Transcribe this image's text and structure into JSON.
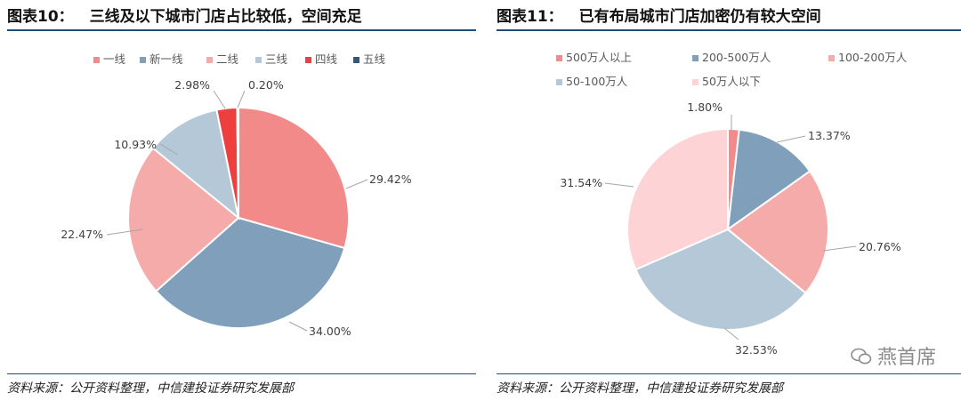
{
  "left": {
    "title_num": "图表10：",
    "title_text": "三线及以下城市门店占比较低，空间充足",
    "source": "资料来源：公开资料整理，中信建投证券研究发展部"
  },
  "right": {
    "title_num": "图表11：",
    "title_text": "已有布局城市门店加密仍有较大空间",
    "source": "资料来源：公开资料整理，中信建投证券研究发展部"
  },
  "watermark": "燕首席",
  "chart_data": [
    {
      "type": "pie",
      "categories": [
        "一线",
        "新一线",
        "二线",
        "三线",
        "四线",
        "五线"
      ],
      "values": [
        29.42,
        34.0,
        22.47,
        10.93,
        2.98,
        0.2
      ],
      "labels": [
        "29.42%",
        "34.00%",
        "22.47%",
        "10.93%",
        "2.98%",
        "0.20%"
      ],
      "colors": [
        "#f28a8a",
        "#7f9fbb",
        "#f6abab",
        "#b4c8d8",
        "#ee3e3e",
        "#2d5a7e"
      ],
      "legend_position": "top"
    },
    {
      "type": "pie",
      "categories": [
        "500万人以上",
        "200-500万人",
        "100-200万人",
        "50-100万人",
        "50万人以下"
      ],
      "values": [
        1.8,
        13.37,
        20.76,
        32.53,
        31.54
      ],
      "labels": [
        "1.80%",
        "13.37%",
        "20.76%",
        "32.53%",
        "31.54%"
      ],
      "colors": [
        "#f28a8a",
        "#7f9fbb",
        "#f6abab",
        "#b4c8d8",
        "#fdd3d6"
      ],
      "legend_position": "top"
    }
  ]
}
